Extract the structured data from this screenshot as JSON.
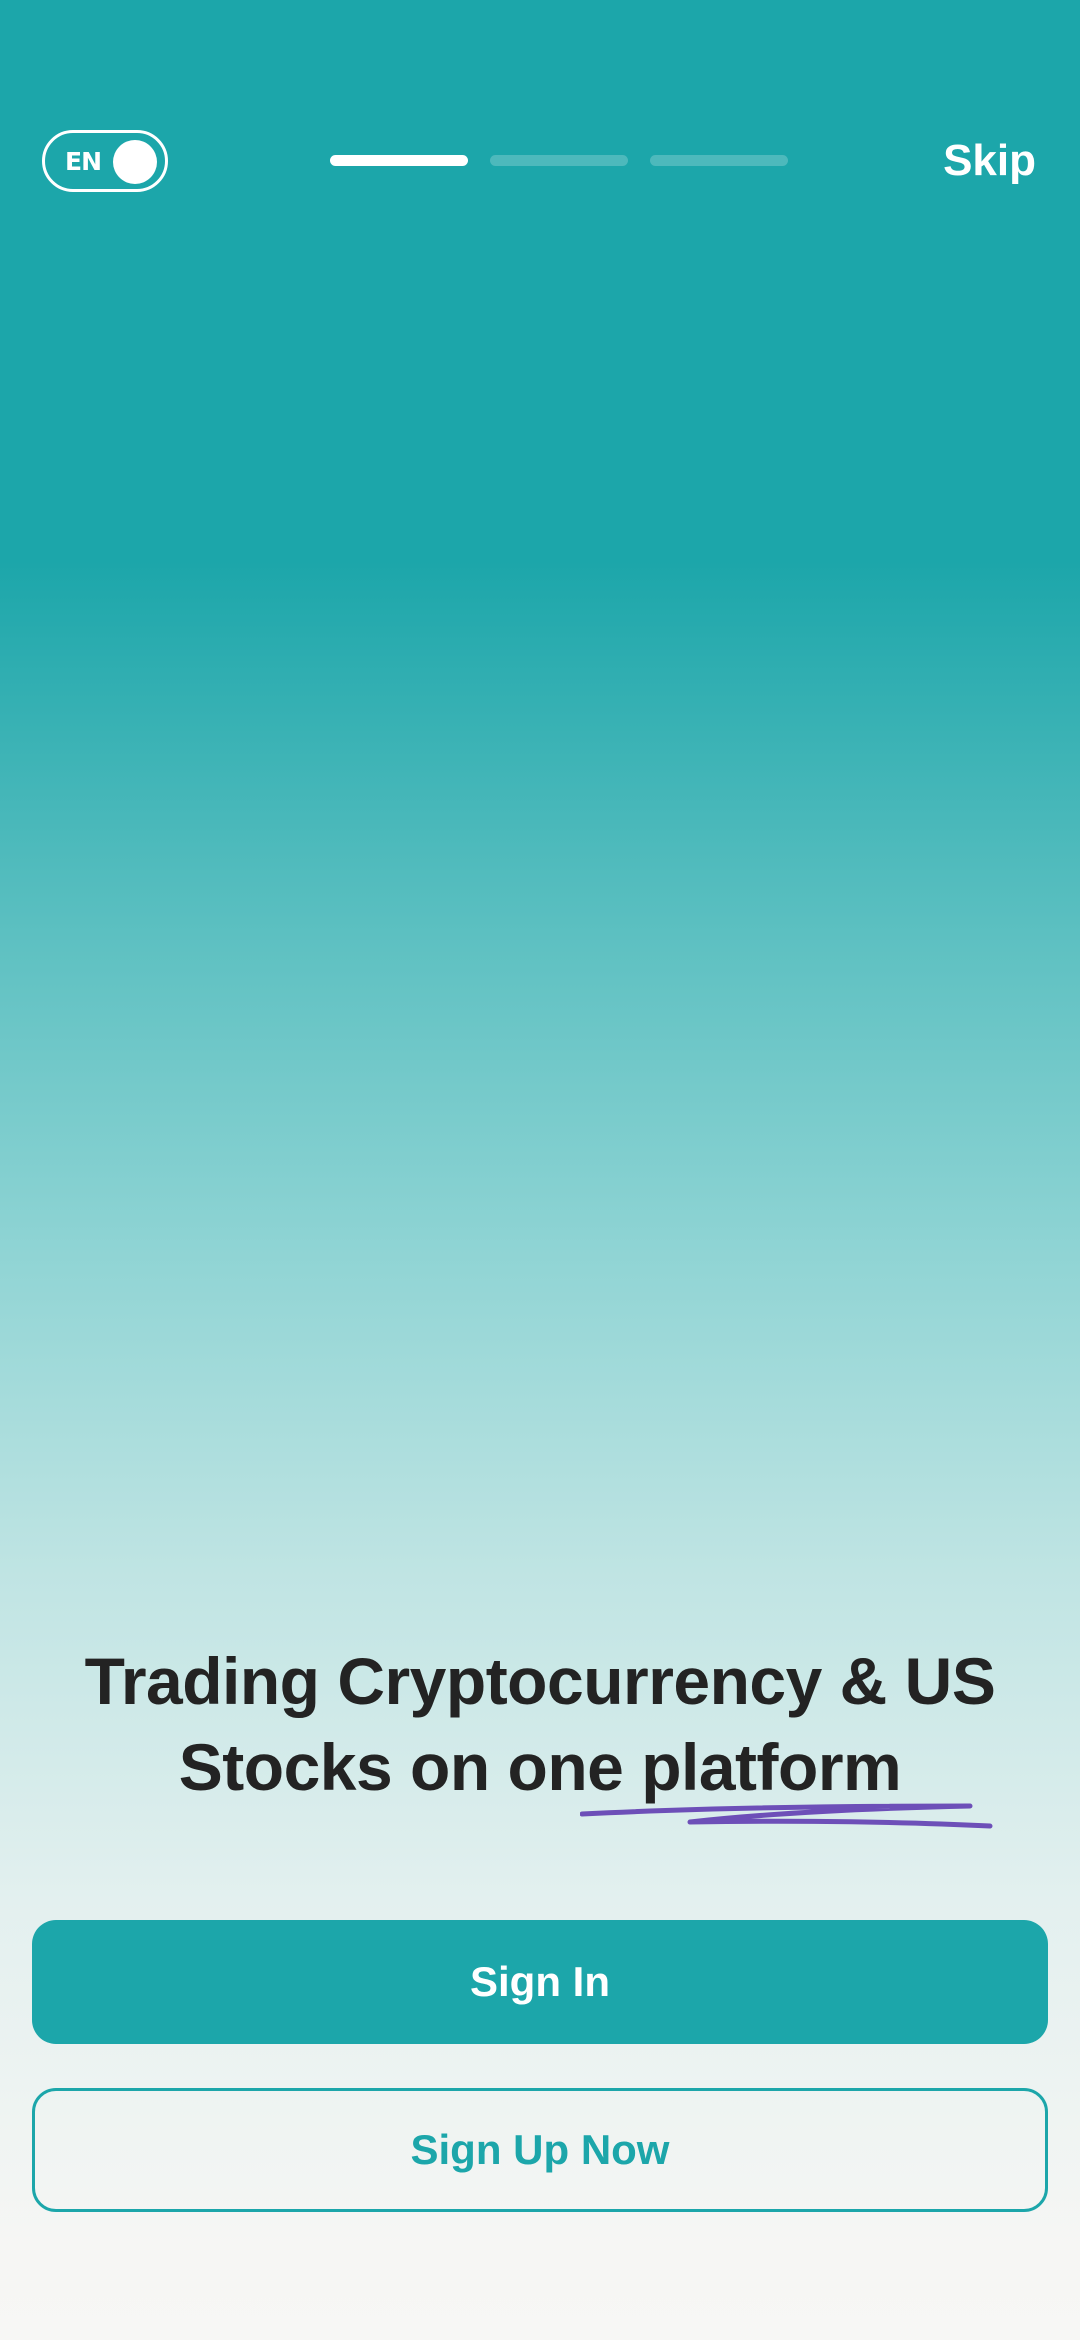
{
  "header": {
    "language_label": "EN",
    "skip_label": "Skip",
    "progress": {
      "total_steps": 3,
      "current_step": 1
    }
  },
  "main": {
    "headline_line1": "Trading Cryptocurrency & US",
    "headline_line2": "Stocks on one platform"
  },
  "actions": {
    "sign_in_label": "Sign In",
    "sign_up_label": "Sign Up Now"
  },
  "colors": {
    "accent": "#1ca6aa",
    "underline": "#6d4fb8",
    "text_dark": "#232323"
  }
}
